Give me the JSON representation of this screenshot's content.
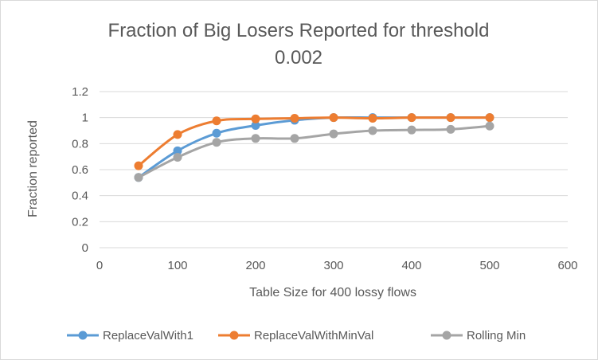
{
  "chart_data": {
    "type": "scatter",
    "title_lines": [
      "Fraction of Big Losers Reported for threshold",
      "0.002"
    ],
    "xlabel": "Table Size for 400 lossy flows",
    "ylabel": "Fraction reported",
    "xlim": [
      0,
      600
    ],
    "ylim": [
      0,
      1.2
    ],
    "xticks": [
      0,
      100,
      200,
      300,
      400,
      500,
      600
    ],
    "yticks": [
      0,
      0.2,
      0.4,
      0.6,
      0.8,
      1,
      1.2
    ],
    "xtick_labels": [
      "0",
      "100",
      "200",
      "300",
      "400",
      "500",
      "600"
    ],
    "ytick_labels": [
      "0",
      "0.2",
      "0.4",
      "0.6",
      "0.8",
      "1",
      "1.2"
    ],
    "grid": "horizontal",
    "legend_position": "bottom",
    "series": [
      {
        "name": "ReplaceValWith1",
        "color": "#5b9bd5",
        "x": [
          50,
          100,
          150,
          200,
          250,
          300,
          350,
          400,
          450,
          500
        ],
        "y": [
          0.54,
          0.745,
          0.88,
          0.94,
          0.98,
          1.0,
          1.0,
          1.0,
          1.0,
          1.0
        ]
      },
      {
        "name": "ReplaceValWithMinVal",
        "color": "#ed7d31",
        "x": [
          50,
          100,
          150,
          200,
          250,
          300,
          350,
          400,
          450,
          500
        ],
        "y": [
          0.63,
          0.87,
          0.975,
          0.99,
          0.995,
          1.0,
          0.995,
          1.0,
          1.0,
          1.0
        ]
      },
      {
        "name": "Rolling Min",
        "color": "#a5a5a5",
        "x": [
          50,
          100,
          150,
          200,
          250,
          300,
          350,
          400,
          450,
          500
        ],
        "y": [
          0.54,
          0.695,
          0.81,
          0.84,
          0.84,
          0.875,
          0.9,
          0.905,
          0.91,
          0.935
        ]
      }
    ]
  }
}
